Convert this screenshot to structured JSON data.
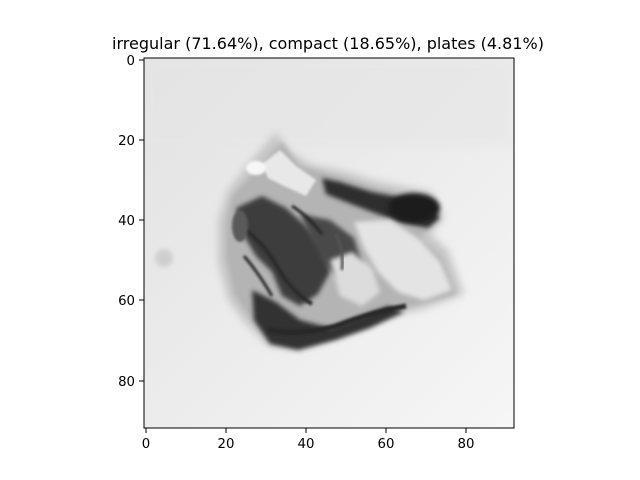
{
  "figure": {
    "title": "irregular (71.64%), compact (18.65%), plates (4.81%)",
    "image_content": "grayscale micrograph of an irregular-shaped particle"
  },
  "axes": {
    "x_ticks": [
      "0",
      "20",
      "40",
      "60",
      "80"
    ],
    "y_ticks": [
      "0",
      "20",
      "40",
      "60",
      "80"
    ],
    "xlim": [
      0,
      91
    ],
    "ylim": [
      91,
      0
    ]
  },
  "colors": {
    "axis": "#000000",
    "background": "#ffffff"
  }
}
